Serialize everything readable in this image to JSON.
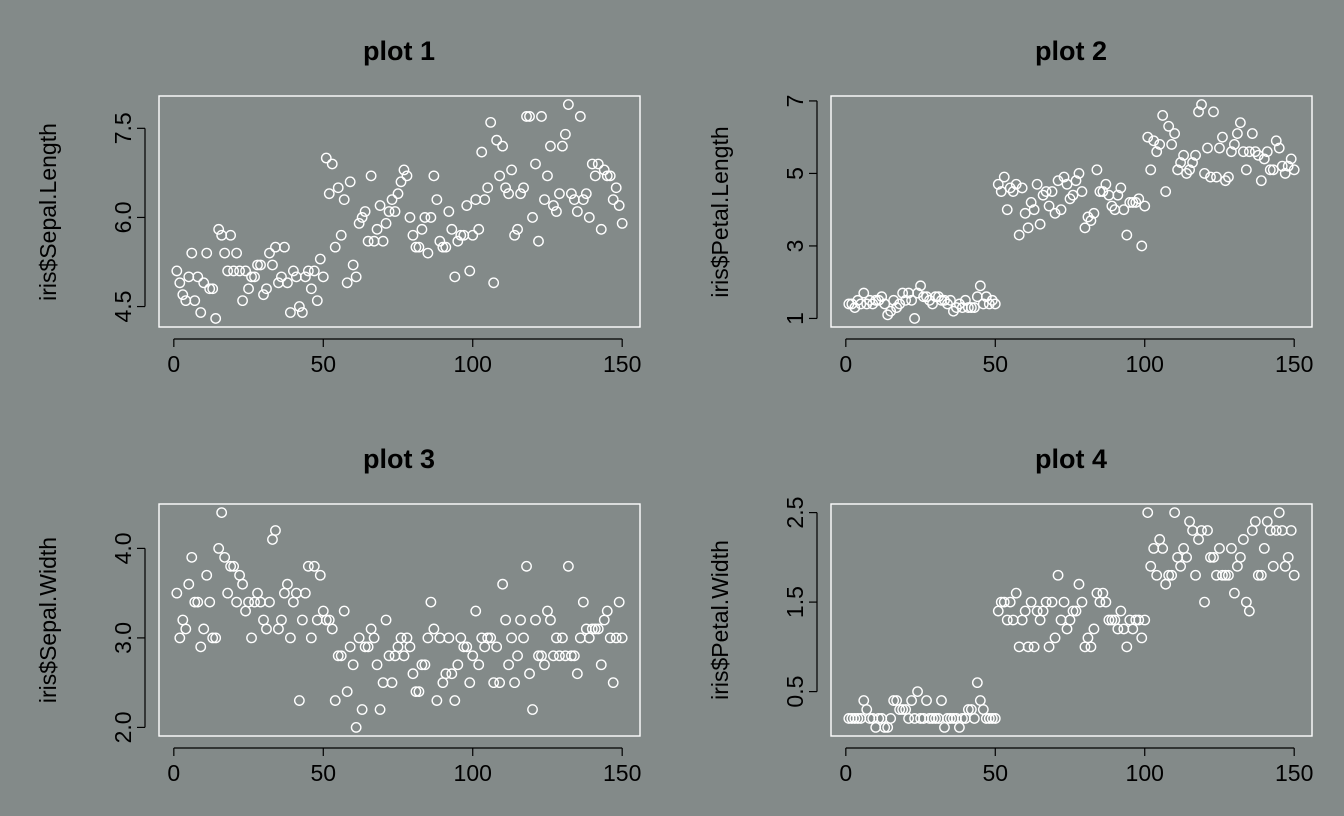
{
  "figure": {
    "background": "#838a89",
    "point_color": "#ffffff",
    "frame_color": "#ffffff",
    "text_color": "#000000"
  },
  "chart_data": [
    {
      "type": "scatter",
      "title": "plot 1",
      "xlabel": "",
      "ylabel": "iris$Sepal.Length",
      "xlim": [
        1,
        150
      ],
      "ylim": [
        4.3,
        7.9
      ],
      "xticks": [
        0,
        50,
        100,
        150
      ],
      "yticks": [
        4.5,
        6.0,
        7.5
      ],
      "ytick_labels": [
        "4.5",
        "6.0",
        "7.5"
      ],
      "x": [
        1,
        2,
        3,
        4,
        5,
        6,
        7,
        8,
        9,
        10,
        11,
        12,
        13,
        14,
        15,
        16,
        17,
        18,
        19,
        20,
        21,
        22,
        23,
        24,
        25,
        26,
        27,
        28,
        29,
        30,
        31,
        32,
        33,
        34,
        35,
        36,
        37,
        38,
        39,
        40,
        41,
        42,
        43,
        44,
        45,
        46,
        47,
        48,
        49,
        50,
        51,
        52,
        53,
        54,
        55,
        56,
        57,
        58,
        59,
        60,
        61,
        62,
        63,
        64,
        65,
        66,
        67,
        68,
        69,
        70,
        71,
        72,
        73,
        74,
        75,
        76,
        77,
        78,
        79,
        80,
        81,
        82,
        83,
        84,
        85,
        86,
        87,
        88,
        89,
        90,
        91,
        92,
        93,
        94,
        95,
        96,
        97,
        98,
        99,
        100,
        101,
        102,
        103,
        104,
        105,
        106,
        107,
        108,
        109,
        110,
        111,
        112,
        113,
        114,
        115,
        116,
        117,
        118,
        119,
        120,
        121,
        122,
        123,
        124,
        125,
        126,
        127,
        128,
        129,
        130,
        131,
        132,
        133,
        134,
        135,
        136,
        137,
        138,
        139,
        140,
        141,
        142,
        143,
        144,
        145,
        146,
        147,
        148,
        149,
        150
      ],
      "y": [
        5.1,
        4.9,
        4.7,
        4.6,
        5.0,
        5.4,
        4.6,
        5.0,
        4.4,
        4.9,
        5.4,
        4.8,
        4.8,
        4.3,
        5.8,
        5.7,
        5.4,
        5.1,
        5.7,
        5.1,
        5.4,
        5.1,
        4.6,
        5.1,
        4.8,
        5.0,
        5.0,
        5.2,
        5.2,
        4.7,
        4.8,
        5.4,
        5.2,
        5.5,
        4.9,
        5.0,
        5.5,
        4.9,
        4.4,
        5.1,
        5.0,
        4.5,
        4.4,
        5.0,
        5.1,
        4.8,
        5.1,
        4.6,
        5.3,
        5.0,
        7.0,
        6.4,
        6.9,
        5.5,
        6.5,
        5.7,
        6.3,
        4.9,
        6.6,
        5.2,
        5.0,
        5.9,
        6.0,
        6.1,
        5.6,
        6.7,
        5.6,
        5.8,
        6.2,
        5.6,
        5.9,
        6.1,
        6.3,
        6.1,
        6.4,
        6.6,
        6.8,
        6.7,
        6.0,
        5.7,
        5.5,
        5.5,
        5.8,
        6.0,
        5.4,
        6.0,
        6.7,
        6.3,
        5.6,
        5.5,
        5.5,
        6.1,
        5.8,
        5.0,
        5.6,
        5.7,
        5.7,
        6.2,
        5.1,
        5.7,
        6.3,
        5.8,
        7.1,
        6.3,
        6.5,
        7.6,
        4.9,
        7.3,
        6.7,
        7.2,
        6.5,
        6.4,
        6.8,
        5.7,
        5.8,
        6.4,
        6.5,
        7.7,
        7.7,
        6.0,
        6.9,
        5.6,
        7.7,
        6.3,
        6.7,
        7.2,
        6.2,
        6.1,
        6.4,
        7.2,
        7.4,
        7.9,
        6.4,
        6.3,
        6.1,
        7.7,
        6.3,
        6.4,
        6.0,
        6.9,
        6.7,
        6.9,
        5.8,
        6.8,
        6.7,
        6.7,
        6.3,
        6.5,
        6.2,
        5.9
      ]
    },
    {
      "type": "scatter",
      "title": "plot 2",
      "xlabel": "",
      "ylabel": "iris$Petal.Length",
      "xlim": [
        1,
        150
      ],
      "ylim": [
        1.0,
        6.9
      ],
      "xticks": [
        0,
        50,
        100,
        150
      ],
      "yticks": [
        1,
        3,
        5,
        7
      ],
      "ytick_labels": [
        "1",
        "3",
        "5",
        "7"
      ],
      "x": [
        1,
        2,
        3,
        4,
        5,
        6,
        7,
        8,
        9,
        10,
        11,
        12,
        13,
        14,
        15,
        16,
        17,
        18,
        19,
        20,
        21,
        22,
        23,
        24,
        25,
        26,
        27,
        28,
        29,
        30,
        31,
        32,
        33,
        34,
        35,
        36,
        37,
        38,
        39,
        40,
        41,
        42,
        43,
        44,
        45,
        46,
        47,
        48,
        49,
        50,
        51,
        52,
        53,
        54,
        55,
        56,
        57,
        58,
        59,
        60,
        61,
        62,
        63,
        64,
        65,
        66,
        67,
        68,
        69,
        70,
        71,
        72,
        73,
        74,
        75,
        76,
        77,
        78,
        79,
        80,
        81,
        82,
        83,
        84,
        85,
        86,
        87,
        88,
        89,
        90,
        91,
        92,
        93,
        94,
        95,
        96,
        97,
        98,
        99,
        100,
        101,
        102,
        103,
        104,
        105,
        106,
        107,
        108,
        109,
        110,
        111,
        112,
        113,
        114,
        115,
        116,
        117,
        118,
        119,
        120,
        121,
        122,
        123,
        124,
        125,
        126,
        127,
        128,
        129,
        130,
        131,
        132,
        133,
        134,
        135,
        136,
        137,
        138,
        139,
        140,
        141,
        142,
        143,
        144,
        145,
        146,
        147,
        148,
        149,
        150
      ],
      "y": [
        1.4,
        1.4,
        1.3,
        1.5,
        1.4,
        1.7,
        1.4,
        1.5,
        1.4,
        1.5,
        1.5,
        1.6,
        1.4,
        1.1,
        1.2,
        1.5,
        1.3,
        1.4,
        1.7,
        1.5,
        1.7,
        1.5,
        1.0,
        1.7,
        1.9,
        1.6,
        1.6,
        1.5,
        1.4,
        1.6,
        1.6,
        1.5,
        1.5,
        1.4,
        1.5,
        1.2,
        1.3,
        1.4,
        1.3,
        1.5,
        1.3,
        1.3,
        1.3,
        1.6,
        1.9,
        1.4,
        1.6,
        1.4,
        1.5,
        1.4,
        4.7,
        4.5,
        4.9,
        4.0,
        4.6,
        4.5,
        4.7,
        3.3,
        4.6,
        3.9,
        3.5,
        4.2,
        4.0,
        4.7,
        3.6,
        4.4,
        4.5,
        4.1,
        4.5,
        3.9,
        4.8,
        4.0,
        4.9,
        4.7,
        4.3,
        4.4,
        4.8,
        5.0,
        4.5,
        3.5,
        3.8,
        3.7,
        3.9,
        5.1,
        4.5,
        4.5,
        4.7,
        4.4,
        4.1,
        4.0,
        4.4,
        4.6,
        4.0,
        3.3,
        4.2,
        4.2,
        4.2,
        4.3,
        3.0,
        4.1,
        6.0,
        5.1,
        5.9,
        5.6,
        5.8,
        6.6,
        4.5,
        6.3,
        5.8,
        6.1,
        5.1,
        5.3,
        5.5,
        5.0,
        5.1,
        5.3,
        5.5,
        6.7,
        6.9,
        5.0,
        5.7,
        4.9,
        6.7,
        4.9,
        5.7,
        6.0,
        4.8,
        4.9,
        5.6,
        5.8,
        6.1,
        6.4,
        5.6,
        5.1,
        5.6,
        6.1,
        5.6,
        5.5,
        4.8,
        5.4,
        5.6,
        5.1,
        5.1,
        5.9,
        5.7,
        5.2,
        5.0,
        5.2,
        5.4,
        5.1
      ]
    },
    {
      "type": "scatter",
      "title": "plot 3",
      "xlabel": "",
      "ylabel": "iris$Sepal.Width",
      "xlim": [
        1,
        150
      ],
      "ylim": [
        2.0,
        4.4
      ],
      "xticks": [
        0,
        50,
        100,
        150
      ],
      "yticks": [
        2.0,
        3.0,
        4.0
      ],
      "ytick_labels": [
        "2.0",
        "3.0",
        "4.0"
      ],
      "x": [
        1,
        2,
        3,
        4,
        5,
        6,
        7,
        8,
        9,
        10,
        11,
        12,
        13,
        14,
        15,
        16,
        17,
        18,
        19,
        20,
        21,
        22,
        23,
        24,
        25,
        26,
        27,
        28,
        29,
        30,
        31,
        32,
        33,
        34,
        35,
        36,
        37,
        38,
        39,
        40,
        41,
        42,
        43,
        44,
        45,
        46,
        47,
        48,
        49,
        50,
        51,
        52,
        53,
        54,
        55,
        56,
        57,
        58,
        59,
        60,
        61,
        62,
        63,
        64,
        65,
        66,
        67,
        68,
        69,
        70,
        71,
        72,
        73,
        74,
        75,
        76,
        77,
        78,
        79,
        80,
        81,
        82,
        83,
        84,
        85,
        86,
        87,
        88,
        89,
        90,
        91,
        92,
        93,
        94,
        95,
        96,
        97,
        98,
        99,
        100,
        101,
        102,
        103,
        104,
        105,
        106,
        107,
        108,
        109,
        110,
        111,
        112,
        113,
        114,
        115,
        116,
        117,
        118,
        119,
        120,
        121,
        122,
        123,
        124,
        125,
        126,
        127,
        128,
        129,
        130,
        131,
        132,
        133,
        134,
        135,
        136,
        137,
        138,
        139,
        140,
        141,
        142,
        143,
        144,
        145,
        146,
        147,
        148,
        149,
        150
      ],
      "y": [
        3.5,
        3.0,
        3.2,
        3.1,
        3.6,
        3.9,
        3.4,
        3.4,
        2.9,
        3.1,
        3.7,
        3.4,
        3.0,
        3.0,
        4.0,
        4.4,
        3.9,
        3.5,
        3.8,
        3.8,
        3.4,
        3.7,
        3.6,
        3.3,
        3.4,
        3.0,
        3.4,
        3.5,
        3.4,
        3.2,
        3.1,
        3.4,
        4.1,
        4.2,
        3.1,
        3.2,
        3.5,
        3.6,
        3.0,
        3.4,
        3.5,
        2.3,
        3.2,
        3.5,
        3.8,
        3.0,
        3.8,
        3.2,
        3.7,
        3.3,
        3.2,
        3.2,
        3.1,
        2.3,
        2.8,
        2.8,
        3.3,
        2.4,
        2.9,
        2.7,
        2.0,
        3.0,
        2.2,
        2.9,
        2.9,
        3.1,
        3.0,
        2.7,
        2.2,
        2.5,
        3.2,
        2.8,
        2.5,
        2.8,
        2.9,
        3.0,
        2.8,
        3.0,
        2.9,
        2.6,
        2.4,
        2.4,
        2.7,
        2.7,
        3.0,
        3.4,
        3.1,
        2.3,
        3.0,
        2.5,
        2.6,
        3.0,
        2.6,
        2.3,
        2.7,
        3.0,
        2.9,
        2.9,
        2.5,
        2.8,
        3.3,
        2.7,
        3.0,
        2.9,
        3.0,
        3.0,
        2.5,
        2.9,
        2.5,
        3.6,
        3.2,
        2.7,
        3.0,
        2.5,
        2.8,
        3.2,
        3.0,
        3.8,
        2.6,
        2.2,
        3.2,
        2.8,
        2.8,
        2.7,
        3.3,
        3.2,
        2.8,
        3.0,
        2.8,
        3.0,
        2.8,
        3.8,
        2.8,
        2.8,
        2.6,
        3.0,
        3.4,
        3.1,
        3.0,
        3.1,
        3.1,
        3.1,
        2.7,
        3.2,
        3.3,
        3.0,
        2.5,
        3.0,
        3.4,
        3.0
      ]
    },
    {
      "type": "scatter",
      "title": "plot 4",
      "xlabel": "",
      "ylabel": "iris$Petal.Width",
      "xlim": [
        1,
        150
      ],
      "ylim": [
        0.1,
        2.5
      ],
      "xticks": [
        0,
        50,
        100,
        150
      ],
      "yticks": [
        0.5,
        1.5,
        2.5
      ],
      "ytick_labels": [
        "0.5",
        "1.5",
        "2.5"
      ],
      "x": [
        1,
        2,
        3,
        4,
        5,
        6,
        7,
        8,
        9,
        10,
        11,
        12,
        13,
        14,
        15,
        16,
        17,
        18,
        19,
        20,
        21,
        22,
        23,
        24,
        25,
        26,
        27,
        28,
        29,
        30,
        31,
        32,
        33,
        34,
        35,
        36,
        37,
        38,
        39,
        40,
        41,
        42,
        43,
        44,
        45,
        46,
        47,
        48,
        49,
        50,
        51,
        52,
        53,
        54,
        55,
        56,
        57,
        58,
        59,
        60,
        61,
        62,
        63,
        64,
        65,
        66,
        67,
        68,
        69,
        70,
        71,
        72,
        73,
        74,
        75,
        76,
        77,
        78,
        79,
        80,
        81,
        82,
        83,
        84,
        85,
        86,
        87,
        88,
        89,
        90,
        91,
        92,
        93,
        94,
        95,
        96,
        97,
        98,
        99,
        100,
        101,
        102,
        103,
        104,
        105,
        106,
        107,
        108,
        109,
        110,
        111,
        112,
        113,
        114,
        115,
        116,
        117,
        118,
        119,
        120,
        121,
        122,
        123,
        124,
        125,
        126,
        127,
        128,
        129,
        130,
        131,
        132,
        133,
        134,
        135,
        136,
        137,
        138,
        139,
        140,
        141,
        142,
        143,
        144,
        145,
        146,
        147,
        148,
        149,
        150
      ],
      "y": [
        0.2,
        0.2,
        0.2,
        0.2,
        0.2,
        0.4,
        0.3,
        0.2,
        0.2,
        0.1,
        0.2,
        0.2,
        0.1,
        0.1,
        0.2,
        0.4,
        0.4,
        0.3,
        0.3,
        0.3,
        0.2,
        0.4,
        0.2,
        0.5,
        0.2,
        0.2,
        0.4,
        0.2,
        0.2,
        0.2,
        0.2,
        0.4,
        0.1,
        0.2,
        0.2,
        0.2,
        0.2,
        0.1,
        0.2,
        0.2,
        0.3,
        0.3,
        0.2,
        0.6,
        0.4,
        0.3,
        0.2,
        0.2,
        0.2,
        0.2,
        1.4,
        1.5,
        1.5,
        1.3,
        1.5,
        1.3,
        1.6,
        1.0,
        1.3,
        1.4,
        1.0,
        1.5,
        1.0,
        1.4,
        1.3,
        1.4,
        1.5,
        1.0,
        1.5,
        1.1,
        1.8,
        1.3,
        1.5,
        1.2,
        1.3,
        1.4,
        1.4,
        1.7,
        1.5,
        1.0,
        1.1,
        1.0,
        1.2,
        1.6,
        1.5,
        1.6,
        1.5,
        1.3,
        1.3,
        1.3,
        1.2,
        1.4,
        1.2,
        1.0,
        1.3,
        1.2,
        1.3,
        1.3,
        1.1,
        1.3,
        2.5,
        1.9,
        2.1,
        1.8,
        2.2,
        2.1,
        1.7,
        1.8,
        1.8,
        2.5,
        2.0,
        1.9,
        2.1,
        2.0,
        2.4,
        2.3,
        1.8,
        2.2,
        2.3,
        1.5,
        2.3,
        2.0,
        2.0,
        1.8,
        2.1,
        1.8,
        1.8,
        1.8,
        2.1,
        1.6,
        1.9,
        2.0,
        2.2,
        1.5,
        1.4,
        2.3,
        2.4,
        1.8,
        1.8,
        2.1,
        2.4,
        2.3,
        1.9,
        2.3,
        2.5,
        2.3,
        1.9,
        2.0,
        2.3,
        1.8
      ]
    }
  ]
}
